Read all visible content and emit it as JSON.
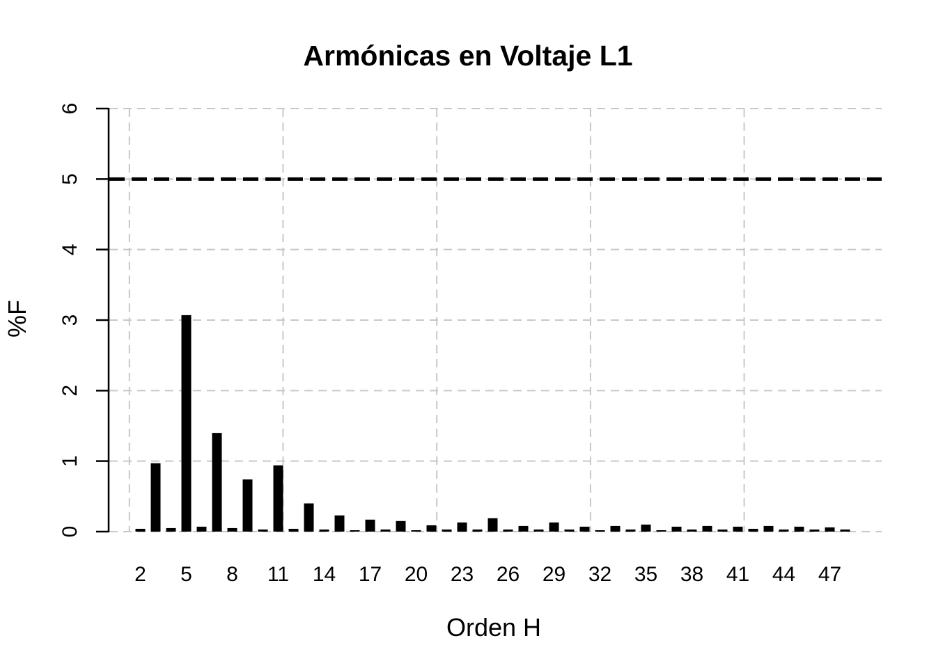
{
  "title": "Armónicas en Voltaje L1",
  "chart_data": {
    "type": "bar",
    "title": "Armónicas en Voltaje L1",
    "xlabel": "Orden H",
    "ylabel": "%F",
    "ylim": [
      0,
      6
    ],
    "yticks": [
      0,
      1,
      2,
      3,
      4,
      5,
      6
    ],
    "xtick_labels": [
      "2",
      "5",
      "8",
      "11",
      "14",
      "17",
      "20",
      "23",
      "26",
      "29",
      "32",
      "35",
      "38",
      "41",
      "44",
      "47"
    ],
    "categories": [
      2,
      3,
      4,
      5,
      6,
      7,
      8,
      9,
      10,
      11,
      12,
      13,
      14,
      15,
      16,
      17,
      18,
      19,
      20,
      21,
      22,
      23,
      24,
      25,
      26,
      27,
      28,
      29,
      30,
      31,
      32,
      33,
      34,
      35,
      36,
      37,
      38,
      39,
      40,
      41,
      42,
      43,
      44,
      45,
      46,
      47,
      48
    ],
    "values": [
      0.04,
      0.97,
      0.05,
      3.07,
      0.07,
      1.4,
      0.05,
      0.74,
      0.03,
      0.94,
      0.04,
      0.4,
      0.03,
      0.23,
      0.02,
      0.17,
      0.03,
      0.15,
      0.02,
      0.09,
      0.03,
      0.13,
      0.03,
      0.19,
      0.03,
      0.08,
      0.03,
      0.13,
      0.03,
      0.07,
      0.02,
      0.08,
      0.03,
      0.1,
      0.02,
      0.07,
      0.03,
      0.08,
      0.03,
      0.07,
      0.04,
      0.08,
      0.03,
      0.07,
      0.03,
      0.06,
      0.03
    ],
    "limit_line": {
      "value": 5,
      "style": "dashed",
      "color": "#000000"
    },
    "grid": true,
    "legend": "none",
    "colors": {
      "bar": "#000000",
      "grid": "#c8c8c8",
      "axis": "#000000",
      "background": "#ffffff",
      "text": "#000000"
    }
  }
}
